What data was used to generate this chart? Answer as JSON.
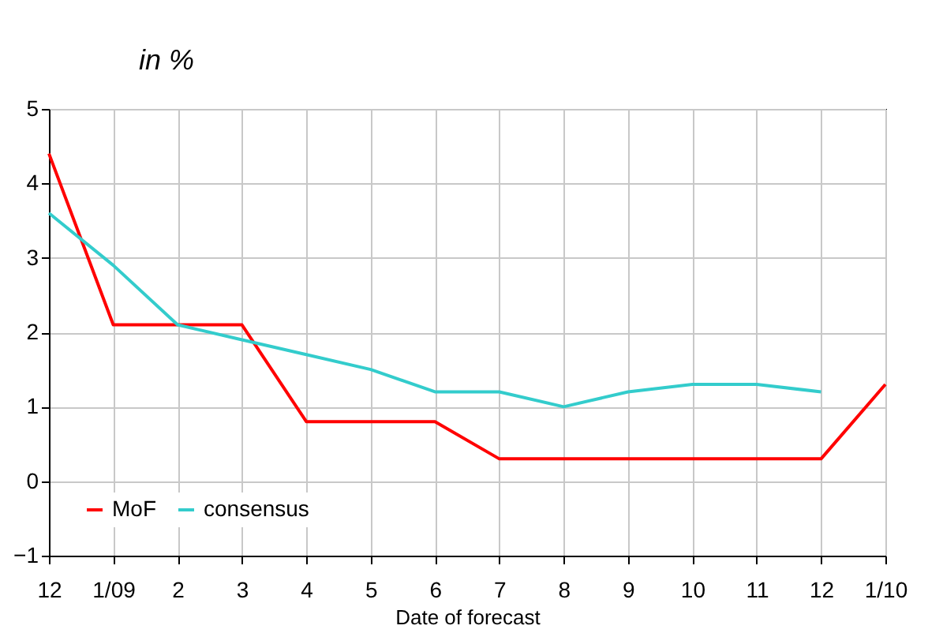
{
  "chart_data": {
    "type": "line",
    "subtitle": "in %",
    "xlabel": "Date of forecast",
    "categories": [
      "12",
      "1/09",
      "2",
      "3",
      "4",
      "5",
      "6",
      "7",
      "8",
      "9",
      "10",
      "11",
      "12",
      "1/10"
    ],
    "series": [
      {
        "name": "MoF",
        "color": "#ff0000",
        "values": [
          4.4,
          2.1,
          2.1,
          2.1,
          0.8,
          0.8,
          0.8,
          0.3,
          0.3,
          0.3,
          0.3,
          0.3,
          0.3,
          1.3
        ]
      },
      {
        "name": "consensus",
        "color": "#33cccc",
        "values": [
          3.6,
          2.9,
          2.1,
          1.9,
          1.7,
          1.5,
          1.2,
          1.2,
          1.0,
          1.2,
          1.3,
          1.3,
          1.2,
          null
        ]
      }
    ],
    "ylim": [
      -1,
      5
    ],
    "yticks": [
      -1,
      0,
      1,
      2,
      3,
      4,
      5
    ],
    "grid": true,
    "legend": "bottom left",
    "marker": "none",
    "line_style": "solid"
  }
}
